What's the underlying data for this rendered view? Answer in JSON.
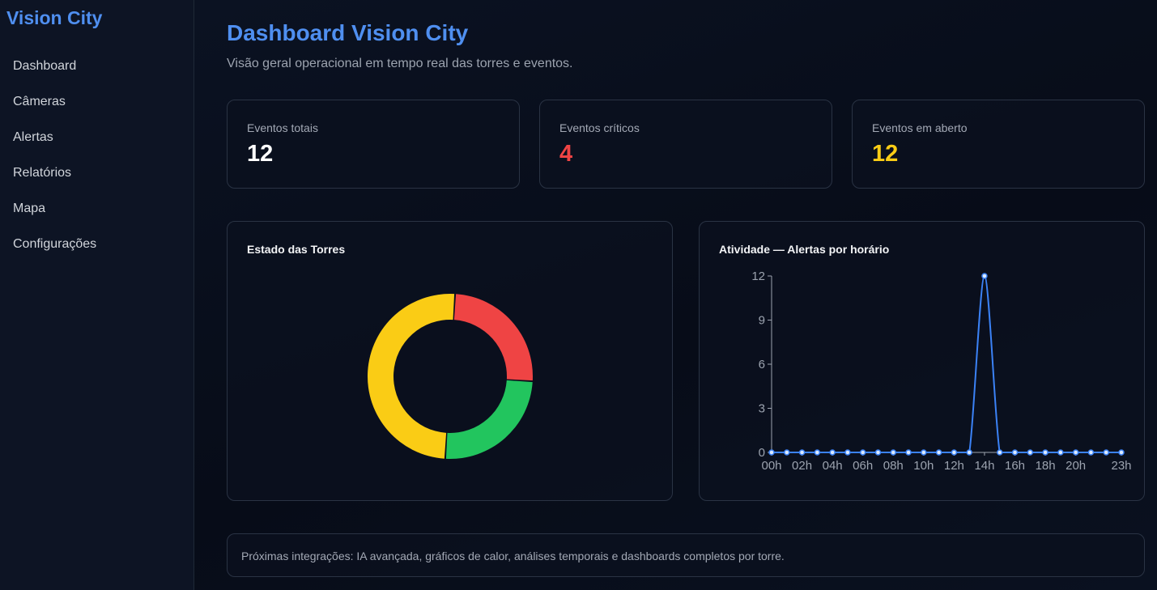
{
  "sidebar": {
    "brand": "Vision City",
    "items": [
      {
        "label": "Dashboard"
      },
      {
        "label": "Câmeras"
      },
      {
        "label": "Alertas"
      },
      {
        "label": "Relatórios"
      },
      {
        "label": "Mapa"
      },
      {
        "label": "Configurações"
      }
    ]
  },
  "header": {
    "title": "Dashboard Vision City",
    "subtitle": "Visão geral operacional em tempo real das torres e eventos."
  },
  "stats": [
    {
      "label": "Eventos totais",
      "value": "12",
      "color": "#ffffff"
    },
    {
      "label": "Eventos críticos",
      "value": "4",
      "color": "#ef4444"
    },
    {
      "label": "Eventos em aberto",
      "value": "12",
      "color": "#facc15"
    }
  ],
  "colors": {
    "accent": "#4f8ff0",
    "red": "#ef4444",
    "green": "#22c55e",
    "yellow": "#facc15",
    "line": "#3b82f6"
  },
  "panels": {
    "donut_title": "Estado das Torres",
    "line_title": "Atividade — Alertas por horário"
  },
  "footer": {
    "text": "Próximas integrações: IA avançada, gráficos de calor, análises temporais e dashboards completos por torre."
  },
  "chart_data": [
    {
      "type": "pie",
      "title": "Estado das Torres",
      "categories": [
        "red",
        "green",
        "yellow"
      ],
      "values": [
        1,
        1,
        2
      ],
      "colors": [
        "#ef4444",
        "#22c55e",
        "#facc15"
      ]
    },
    {
      "type": "line",
      "title": "Atividade — Alertas por horário",
      "x": [
        "00h",
        "01h",
        "02h",
        "03h",
        "04h",
        "05h",
        "06h",
        "07h",
        "08h",
        "09h",
        "10h",
        "11h",
        "12h",
        "13h",
        "14h",
        "15h",
        "16h",
        "17h",
        "18h",
        "19h",
        "20h",
        "21h",
        "22h",
        "23h"
      ],
      "x_tick_labels": [
        "00h",
        "02h",
        "04h",
        "06h",
        "08h",
        "10h",
        "12h",
        "14h",
        "16h",
        "18h",
        "20h",
        "23h"
      ],
      "values": [
        0,
        0,
        0,
        0,
        0,
        0,
        0,
        0,
        0,
        0,
        0,
        0,
        0,
        0,
        12,
        0,
        0,
        0,
        0,
        0,
        0,
        0,
        0,
        0
      ],
      "ylim": [
        0,
        12
      ],
      "y_ticks": [
        0,
        3,
        6,
        9,
        12
      ],
      "grid": false
    }
  ]
}
